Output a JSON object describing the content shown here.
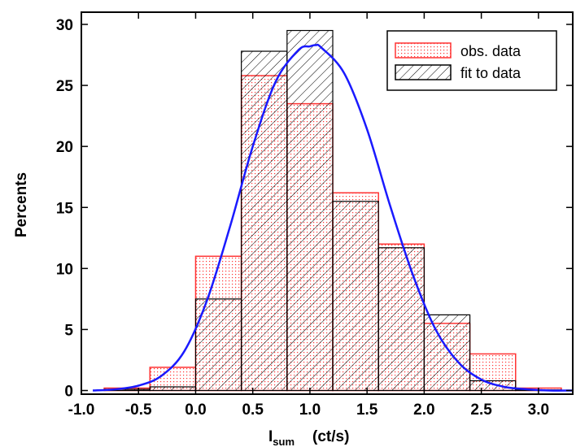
{
  "chart_data": {
    "type": "bar",
    "title": "",
    "xlabel_main": "I",
    "xlabel_sub": "sum",
    "xlabel_unit": "(ct/s)",
    "ylabel": "Percents",
    "xlim": [
      -1.0,
      3.3
    ],
    "ylim": [
      -0.3,
      31
    ],
    "xticks": [
      "-1.0",
      "-0.5",
      "0.0",
      "0.5",
      "1.0",
      "1.5",
      "2.0",
      "2.5",
      "3.0"
    ],
    "yticks": [
      "0",
      "5",
      "10",
      "15",
      "20",
      "25",
      "30"
    ],
    "bin_edges": [
      -0.8,
      -0.4,
      0.0,
      0.4,
      0.8,
      1.2,
      1.6,
      2.0,
      2.4,
      2.8,
      3.2
    ],
    "legend_position": "top-right",
    "colors": {
      "observed": "#ff3333",
      "fit": "#000000",
      "curve": "#1a1aff"
    },
    "series": [
      {
        "name": "obs. data",
        "style": "red-dotted",
        "values": [
          0.2,
          1.9,
          11.0,
          25.8,
          23.5,
          16.2,
          12.0,
          5.5,
          3.0,
          0.2
        ]
      },
      {
        "name": "fit to data",
        "style": "black-hatched",
        "values": [
          0.1,
          0.3,
          7.5,
          27.8,
          29.5,
          15.5,
          11.7,
          6.2,
          0.8,
          0.05
        ]
      }
    ],
    "curve": {
      "x": [
        -0.9,
        -0.7,
        -0.5,
        -0.3,
        -0.1,
        0.1,
        0.3,
        0.5,
        0.7,
        0.9,
        1.0,
        1.05,
        1.1,
        1.3,
        1.5,
        1.7,
        1.9,
        2.1,
        2.3,
        2.5,
        2.7,
        2.9,
        3.1,
        3.3
      ],
      "y": [
        0.0,
        0.1,
        0.4,
        1.2,
        3.2,
        7.4,
        13.4,
        20.0,
        25.3,
        27.9,
        28.2,
        28.3,
        28.1,
        26.0,
        21.4,
        15.2,
        9.5,
        5.0,
        2.3,
        0.9,
        0.3,
        0.1,
        0.0,
        0.0
      ]
    }
  }
}
